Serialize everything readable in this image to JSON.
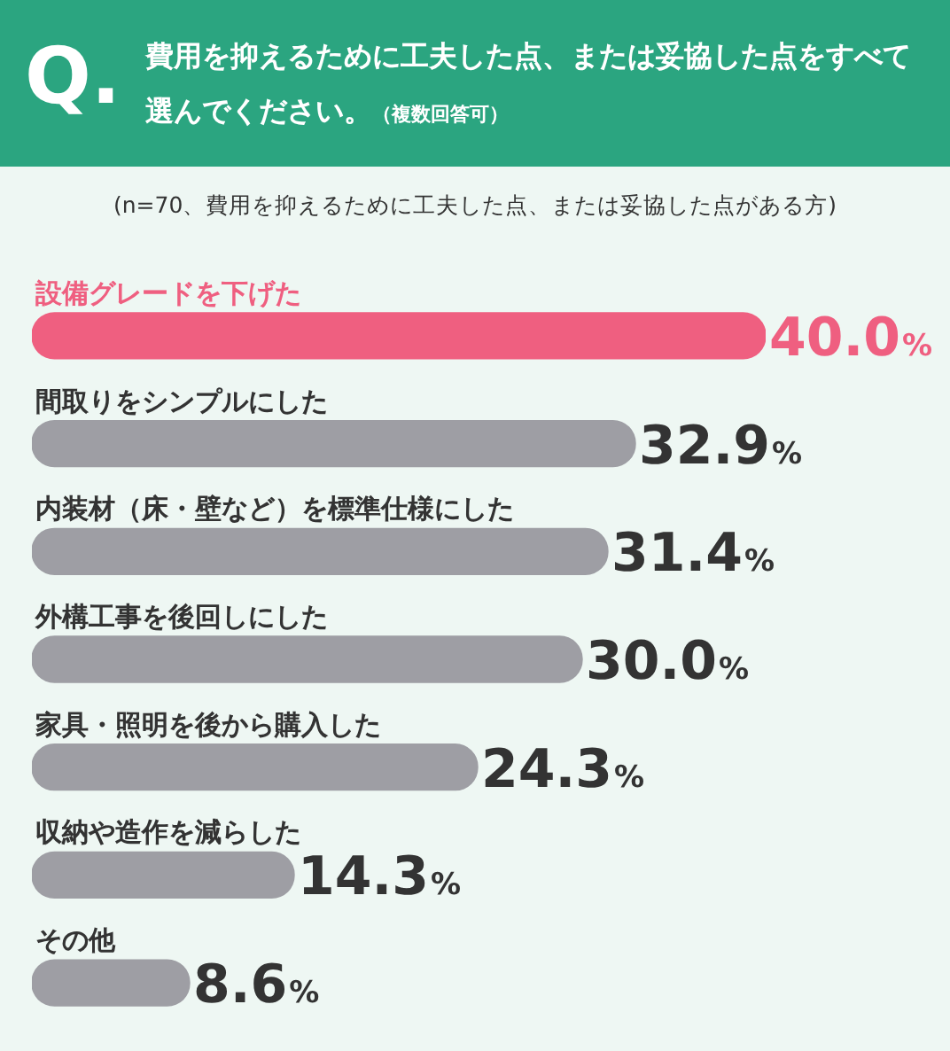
{
  "chart_data": {
    "type": "bar",
    "orientation": "horizontal",
    "title": "費用を抑えるために工夫した点、または妥協した点をすべて選んでください。",
    "subtitle": "(n=70、費用を抑えるために工夫した点、または妥協した点がある方)",
    "annotations": [
      "Q.",
      "（複数回答可）"
    ],
    "categories": [
      "設備グレードを下げた",
      "間取りをシンプルにした",
      "内装材（床・壁など）を標準仕様にした",
      "外構工事を後回しにした",
      "家具・照明を後から購入した",
      "収納や造作を減らした",
      "その他"
    ],
    "values": [
      40.0,
      32.9,
      31.4,
      30.0,
      24.3,
      14.3,
      8.6
    ],
    "colors": [
      "#ef5f80",
      "#9e9ea4",
      "#9e9ea4",
      "#9e9ea4",
      "#9e9ea4",
      "#9e9ea4",
      "#9e9ea4"
    ],
    "value_labels": [
      "40.0%",
      "32.9%",
      "31.4%",
      "30.0%",
      "24.3%",
      "14.3%",
      "8.6%"
    ],
    "tick_labels": false
  }
}
